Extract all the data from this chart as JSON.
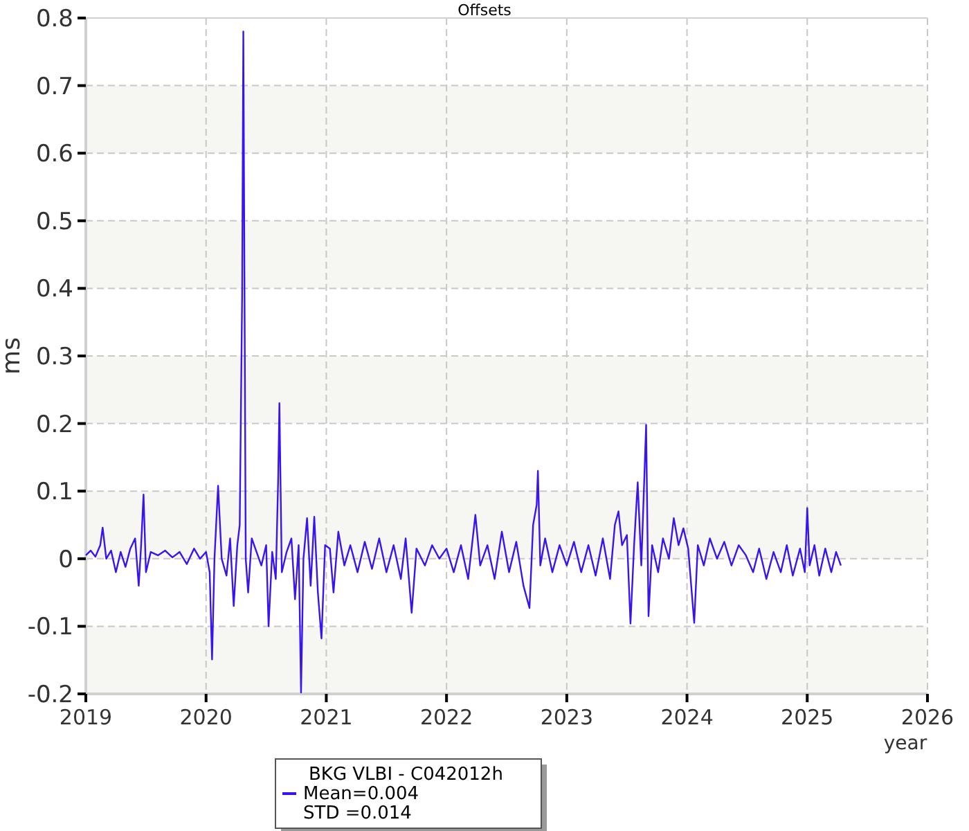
{
  "chart_data": {
    "type": "line",
    "title": "Offsets",
    "xlabel": "year",
    "ylabel": "ms",
    "xlim": [
      2019,
      2026
    ],
    "xticks": [
      2019,
      2020,
      2021,
      2022,
      2023,
      2024,
      2025,
      2026
    ],
    "ylim": [
      -0.2,
      0.8
    ],
    "yticks": [
      -0.2,
      -0.1,
      0,
      0.1,
      0.2,
      0.3,
      0.4,
      0.5,
      0.6,
      0.7,
      0.8
    ],
    "grid": true,
    "legend": "bottom",
    "line_style": "solid",
    "annotations": [
      "Mean=0.004",
      "STD =0.014"
    ],
    "x": [
      2019.0,
      2019.04,
      2019.08,
      2019.12,
      2019.14,
      2019.17,
      2019.21,
      2019.25,
      2019.29,
      2019.33,
      2019.37,
      2019.41,
      2019.44,
      2019.46,
      2019.48,
      2019.5,
      2019.54,
      2019.6,
      2019.66,
      2019.72,
      2019.78,
      2019.84,
      2019.9,
      2019.95,
      2020.0,
      2020.03,
      2020.05,
      2020.07,
      2020.1,
      2020.13,
      2020.17,
      2020.2,
      2020.23,
      2020.26,
      2020.28,
      2020.3,
      2020.31,
      2020.33,
      2020.35,
      2020.38,
      2020.42,
      2020.46,
      2020.5,
      2020.52,
      2020.55,
      2020.58,
      2020.6,
      2020.61,
      2020.63,
      2020.67,
      2020.71,
      2020.74,
      2020.77,
      2020.79,
      2020.81,
      2020.84,
      2020.87,
      2020.9,
      2020.93,
      2020.96,
      2020.99,
      2021.03,
      2021.06,
      2021.1,
      2021.15,
      2021.2,
      2021.26,
      2021.32,
      2021.38,
      2021.44,
      2021.5,
      2021.56,
      2021.62,
      2021.66,
      2021.71,
      2021.75,
      2021.82,
      2021.88,
      2021.94,
      2022.0,
      2022.06,
      2022.12,
      2022.18,
      2022.24,
      2022.28,
      2022.34,
      2022.4,
      2022.46,
      2022.52,
      2022.58,
      2022.64,
      2022.69,
      2022.72,
      2022.75,
      2022.76,
      2022.78,
      2022.82,
      2022.88,
      2022.94,
      2023.0,
      2023.06,
      2023.12,
      2023.18,
      2023.24,
      2023.3,
      2023.36,
      2023.4,
      2023.43,
      2023.46,
      2023.5,
      2023.53,
      2023.56,
      2023.59,
      2023.62,
      2023.66,
      2023.68,
      2023.71,
      2023.76,
      2023.8,
      2023.85,
      2023.89,
      2023.93,
      2023.97,
      2024.01,
      2024.06,
      2024.09,
      2024.14,
      2024.19,
      2024.25,
      2024.31,
      2024.37,
      2024.43,
      2024.49,
      2024.55,
      2024.6,
      2024.66,
      2024.72,
      2024.78,
      2024.83,
      2024.88,
      2024.94,
      2024.98,
      2025.0,
      2025.02,
      2025.06,
      2025.1,
      2025.15,
      2025.2,
      2025.24,
      2025.28
    ],
    "series": [
      {
        "name": "BKG VLBI - C042012h",
        "color": "#3a14f0",
        "values": [
          0.005,
          0.012,
          0.003,
          0.02,
          0.046,
          0.0,
          0.012,
          -0.02,
          0.01,
          -0.012,
          0.015,
          0.03,
          -0.04,
          0.02,
          0.095,
          -0.02,
          0.01,
          0.005,
          0.012,
          0.002,
          0.01,
          -0.008,
          0.015,
          0.0,
          0.01,
          -0.02,
          -0.149,
          0.0,
          0.108,
          0.0,
          -0.025,
          0.03,
          -0.07,
          0.02,
          0.05,
          0.39,
          0.78,
          0.0,
          -0.05,
          0.03,
          0.01,
          -0.01,
          0.02,
          -0.1,
          0.01,
          -0.03,
          0.12,
          0.23,
          -0.02,
          0.01,
          0.03,
          -0.06,
          0.02,
          -0.198,
          0.0,
          0.06,
          -0.04,
          0.062,
          -0.05,
          -0.118,
          0.02,
          0.015,
          -0.05,
          0.04,
          -0.01,
          0.02,
          -0.02,
          0.025,
          -0.015,
          0.03,
          -0.02,
          0.02,
          -0.03,
          0.03,
          -0.08,
          0.015,
          -0.01,
          0.02,
          0.0,
          0.015,
          -0.02,
          0.02,
          -0.03,
          0.065,
          -0.01,
          0.02,
          -0.03,
          0.04,
          -0.02,
          0.025,
          -0.04,
          -0.073,
          0.05,
          0.08,
          0.13,
          -0.01,
          0.03,
          -0.02,
          0.02,
          -0.01,
          0.025,
          -0.02,
          0.02,
          -0.025,
          0.03,
          -0.03,
          0.05,
          0.07,
          0.02,
          0.035,
          -0.096,
          0.02,
          0.113,
          -0.01,
          0.198,
          -0.085,
          0.02,
          -0.02,
          0.03,
          0.0,
          0.06,
          0.02,
          0.045,
          0.015,
          -0.095,
          0.02,
          -0.01,
          0.03,
          0.0,
          0.025,
          -0.01,
          0.02,
          0.005,
          -0.02,
          0.015,
          -0.03,
          0.01,
          -0.02,
          0.02,
          -0.025,
          0.015,
          -0.02,
          0.075,
          -0.01,
          0.02,
          -0.025,
          0.015,
          -0.02,
          0.01,
          -0.01
        ]
      }
    ]
  }
}
